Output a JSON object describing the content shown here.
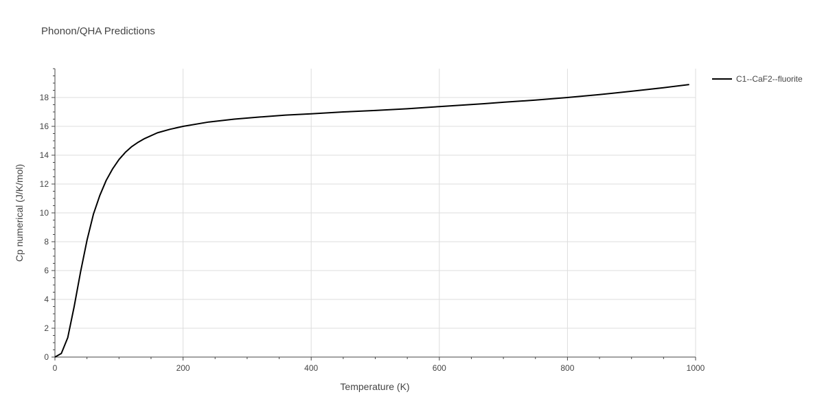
{
  "chart_data": {
    "type": "line",
    "title": "Phonon/QHA Predictions",
    "xlabel": "Temperature (K)",
    "ylabel": "Cp numerical (J/K/mol)",
    "xlim": [
      0,
      1000
    ],
    "ylim": [
      0,
      20
    ],
    "xticks": [
      0,
      200,
      400,
      600,
      800,
      1000
    ],
    "yticks": [
      0,
      2,
      4,
      6,
      8,
      10,
      12,
      14,
      16,
      18
    ],
    "grid": true,
    "legend_position": "top-right",
    "series": [
      {
        "name": "C1--CaF2--fluorite",
        "color": "#000000",
        "x": [
          0,
          10,
          20,
          30,
          40,
          50,
          60,
          70,
          80,
          90,
          100,
          110,
          120,
          130,
          140,
          160,
          180,
          200,
          240,
          280,
          320,
          360,
          400,
          450,
          500,
          550,
          600,
          670,
          700,
          750,
          800,
          850,
          910,
          950,
          990
        ],
        "y": [
          0,
          0.25,
          1.35,
          3.5,
          5.9,
          8.1,
          9.9,
          11.2,
          12.25,
          13.05,
          13.7,
          14.2,
          14.6,
          14.9,
          15.15,
          15.55,
          15.8,
          16.0,
          16.3,
          16.5,
          16.65,
          16.78,
          16.87,
          17.0,
          17.1,
          17.22,
          17.37,
          17.57,
          17.67,
          17.82,
          18.0,
          18.2,
          18.48,
          18.68,
          18.9
        ]
      }
    ]
  }
}
